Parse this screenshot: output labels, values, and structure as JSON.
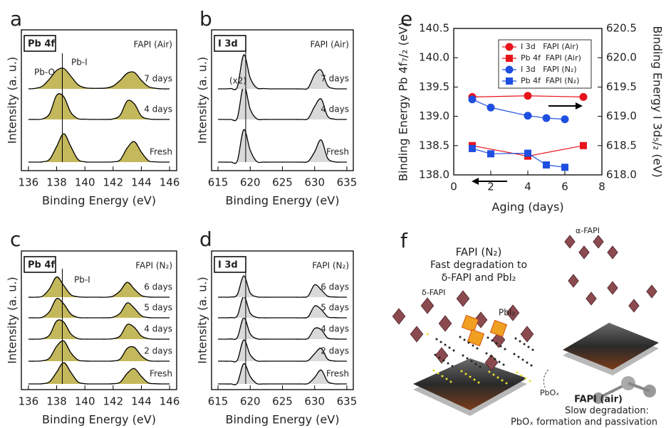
{
  "chart_data": [
    {
      "type": "spectrum",
      "label": "a",
      "xlabel": "Binding Energy (eV)",
      "ylabel": "Intensity (a. u.)",
      "region": "Pb 4f",
      "condition": "FAPI (Air)",
      "xlim": [
        135.5,
        146.5
      ],
      "xticks": [
        136,
        138,
        140,
        142,
        144,
        146
      ],
      "fill": "#c4b85c",
      "line_color": "#000000",
      "vline": 138.4,
      "annotations": [
        {
          "text": "Pb-O",
          "color": "#8a6a3c"
        },
        {
          "text": "Pb-I",
          "color": "#a89a2c"
        }
      ],
      "x": [
        136,
        136.5,
        137,
        137.5,
        138,
        138.5,
        139,
        139.5,
        140,
        140.5,
        141,
        141.5,
        142,
        142.5,
        143,
        143.5,
        144,
        144.5,
        145,
        145.5,
        146
      ],
      "series": [
        {
          "name": "Fresh",
          "values": [
            0,
            0,
            0.01,
            0.1,
            0.55,
            1,
            0.55,
            0.1,
            0.01,
            0,
            0,
            0,
            0.01,
            0.08,
            0.5,
            0.72,
            0.35,
            0.05,
            0.01,
            0,
            0
          ]
        },
        {
          "name": "4 days",
          "values": [
            0,
            0,
            0.02,
            0.2,
            0.85,
            0.8,
            0.25,
            0.03,
            0.01,
            0,
            0,
            0,
            0.02,
            0.15,
            0.65,
            0.55,
            0.12,
            0.02,
            0,
            0,
            0
          ]
        },
        {
          "name": "7 days",
          "values": [
            0,
            0.02,
            0.1,
            0.35,
            0.65,
            0.72,
            0.45,
            0.15,
            0.04,
            0.02,
            0.02,
            0.03,
            0.1,
            0.3,
            0.55,
            0.58,
            0.3,
            0.08,
            0.02,
            0,
            0
          ]
        }
      ]
    },
    {
      "type": "spectrum",
      "label": "b",
      "xlabel": "Binding Energy (eV)",
      "ylabel": "Intensity (a. u.)",
      "region": "I 3d",
      "condition": "FAPI (Air)",
      "xlim": [
        614,
        636
      ],
      "xticks": [
        615,
        620,
        625,
        630,
        635
      ],
      "fill": "#d9d9d9",
      "line_color": "#000000",
      "vline": 619.3,
      "annotations": [
        {
          "text": "(x2)",
          "color": "#222222"
        }
      ],
      "x": [
        615,
        616,
        617,
        618,
        619,
        620,
        621,
        622,
        623,
        624,
        625,
        626,
        627,
        628,
        629,
        630,
        631,
        632,
        633,
        634,
        635
      ],
      "series": [
        {
          "name": "Fresh",
          "values": [
            0,
            0,
            0,
            0.04,
            0.95,
            0.35,
            0.02,
            0,
            0,
            0,
            0,
            0,
            0,
            0,
            0.02,
            0.3,
            0.65,
            0.12,
            0.01,
            0,
            0
          ]
        },
        {
          "name": "4 days",
          "values": [
            0,
            0,
            0,
            0.05,
            1,
            0.3,
            0.02,
            0,
            0,
            0,
            0,
            0,
            0,
            0,
            0.03,
            0.38,
            0.6,
            0.1,
            0.01,
            0,
            0
          ]
        },
        {
          "name": "7 days",
          "values": [
            0,
            0,
            0.01,
            0.06,
            1,
            0.32,
            0.03,
            0.01,
            0,
            0,
            0,
            0,
            0,
            0,
            0.03,
            0.42,
            0.55,
            0.1,
            0.01,
            0,
            0
          ]
        }
      ]
    },
    {
      "type": "spectrum",
      "label": "c",
      "xlabel": "Binding Energy (eV)",
      "ylabel": "Intensity (a. u.)",
      "region": "Pb 4f",
      "condition": "FAPI (N₂)",
      "xlim": [
        135.5,
        146.5
      ],
      "xticks": [
        136,
        138,
        140,
        142,
        144,
        146
      ],
      "fill": "#c4b85c",
      "line_color": "#000000",
      "vline": 138.4,
      "annotations": [
        {
          "text": "Pb-I",
          "color": "#a89a2c"
        }
      ],
      "x": [
        136,
        136.5,
        137,
        137.5,
        138,
        138.5,
        139,
        139.5,
        140,
        140.5,
        141,
        141.5,
        142,
        142.5,
        143,
        143.5,
        144,
        144.5,
        145,
        145.5,
        146
      ],
      "series": [
        {
          "name": "Fresh",
          "values": [
            0,
            0,
            0.01,
            0.1,
            0.55,
            1,
            0.55,
            0.1,
            0.01,
            0,
            0,
            0,
            0.01,
            0.08,
            0.5,
            0.72,
            0.35,
            0.05,
            0.01,
            0,
            0
          ]
        },
        {
          "name": "2 days",
          "values": [
            0,
            0,
            0.02,
            0.15,
            0.7,
            0.95,
            0.4,
            0.06,
            0.01,
            0,
            0,
            0,
            0.01,
            0.1,
            0.6,
            0.65,
            0.25,
            0.03,
            0,
            0,
            0
          ]
        },
        {
          "name": "4 days",
          "values": [
            0,
            0,
            0.02,
            0.2,
            0.85,
            0.8,
            0.25,
            0.03,
            0,
            0,
            0,
            0,
            0.02,
            0.15,
            0.68,
            0.55,
            0.15,
            0.02,
            0,
            0,
            0
          ]
        },
        {
          "name": "5 days",
          "values": [
            0,
            0,
            0.03,
            0.3,
            0.9,
            0.65,
            0.18,
            0.02,
            0,
            0,
            0,
            0,
            0.03,
            0.22,
            0.7,
            0.45,
            0.1,
            0.01,
            0,
            0,
            0
          ]
        },
        {
          "name": "6 days",
          "values": [
            0,
            0,
            0.05,
            0.4,
            0.95,
            0.55,
            0.12,
            0.02,
            0,
            0,
            0,
            0,
            0.05,
            0.3,
            0.7,
            0.38,
            0.08,
            0.01,
            0,
            0,
            0
          ]
        }
      ]
    },
    {
      "type": "spectrum",
      "label": "d",
      "xlabel": "Binding Energy (eV)",
      "ylabel": "Intensity (a. u.)",
      "region": "I 3d",
      "condition": "FAPI (N₂)",
      "xlim": [
        614,
        636
      ],
      "xticks": [
        615,
        620,
        625,
        630,
        635
      ],
      "fill": "#d9d9d9",
      "line_color": "#000000",
      "vline": 619.3,
      "annotations": [],
      "x": [
        615,
        616,
        617,
        618,
        619,
        620,
        621,
        622,
        623,
        624,
        625,
        626,
        627,
        628,
        629,
        630,
        631,
        632,
        633,
        634,
        635
      ],
      "series": [
        {
          "name": "Fresh",
          "values": [
            0,
            0,
            0,
            0.04,
            0.95,
            0.35,
            0.02,
            0,
            0,
            0,
            0,
            0,
            0,
            0,
            0.02,
            0.3,
            0.65,
            0.12,
            0.01,
            0,
            0
          ]
        },
        {
          "name": "2 days",
          "values": [
            0,
            0,
            0,
            0.05,
            1,
            0.3,
            0.02,
            0,
            0,
            0,
            0,
            0,
            0,
            0,
            0.03,
            0.35,
            0.6,
            0.1,
            0.01,
            0,
            0
          ]
        },
        {
          "name": "4 days",
          "values": [
            0,
            0,
            0.01,
            0.08,
            1,
            0.25,
            0.02,
            0,
            0,
            0,
            0,
            0,
            0,
            0,
            0.04,
            0.5,
            0.45,
            0.06,
            0.01,
            0,
            0
          ]
        },
        {
          "name": "5 days",
          "values": [
            0,
            0,
            0.01,
            0.1,
            1,
            0.22,
            0.02,
            0,
            0,
            0,
            0,
            0,
            0,
            0,
            0.05,
            0.55,
            0.4,
            0.05,
            0.01,
            0,
            0
          ]
        },
        {
          "name": "6 days",
          "values": [
            0,
            0,
            0.01,
            0.12,
            1,
            0.2,
            0.02,
            0,
            0,
            0,
            0,
            0,
            0,
            0,
            0.06,
            0.58,
            0.35,
            0.05,
            0.01,
            0,
            0
          ]
        }
      ]
    },
    {
      "type": "line",
      "label": "e",
      "xlabel": "Aging (days)",
      "ylabel": "Binding Energy Pb 4f₇/₂ (eV)",
      "y2label": "Binding Energy I 3d₅/₂ (eV)",
      "xlim": [
        0,
        8
      ],
      "xticks": [
        0,
        2,
        4,
        6,
        8
      ],
      "ylim": [
        138,
        140.5
      ],
      "yticks": [
        {
          "value": 138,
          "label": "138.0"
        },
        138.5,
        {
          "value": 139,
          "label": "139.0"
        },
        139.5,
        {
          "value": 140,
          "label": "140.0"
        },
        140.5
      ],
      "y2lim": [
        618,
        620.5
      ],
      "y2ticks": [
        {
          "value": 618,
          "label": "618.0"
        },
        618.5,
        {
          "value": 619,
          "label": "619.0"
        },
        619.5,
        {
          "value": 620,
          "label": "620.0"
        },
        620.5
      ],
      "series": [
        {
          "name": "I 3d   FAPI (Air)",
          "color": "#e8141c",
          "marker": "circle",
          "axis": "y2",
          "x": [
            1,
            4,
            7
          ],
          "values": [
            619.33,
            619.35,
            619.33
          ]
        },
        {
          "name": "Pb 4f  FAPI (Air)",
          "color": "#e8141c",
          "marker": "square",
          "axis": "y",
          "x": [
            1,
            4,
            7
          ],
          "values": [
            138.5,
            138.32,
            138.5
          ]
        },
        {
          "name": "I 3d   FAPI (N₂)",
          "color": "#1f4fe0",
          "marker": "circle",
          "axis": "y2",
          "x": [
            1,
            2,
            4,
            5,
            6
          ],
          "values": [
            619.29,
            619.15,
            619.01,
            618.97,
            618.95
          ]
        },
        {
          "name": "Pb 4f  FAPI (N₂)",
          "color": "#1f4fe0",
          "marker": "square",
          "axis": "y",
          "x": [
            1,
            2,
            4,
            5,
            6
          ],
          "values": [
            138.45,
            138.36,
            138.37,
            138.17,
            138.13
          ]
        }
      ]
    }
  ],
  "illustration": {
    "label": "f",
    "title": "FAPI (N₂)",
    "subtitle": [
      "Fast degradation to",
      "δ-FAPI and PbI₂"
    ],
    "delta": "δ-FAPI",
    "alpha": "α-FAPI",
    "pbi2": "PbI₂",
    "pbox": "PbOₓ",
    "caption": [
      "FAPI (air)",
      "Slow degradation:",
      "PbOₓ formation and passivation"
    ]
  }
}
